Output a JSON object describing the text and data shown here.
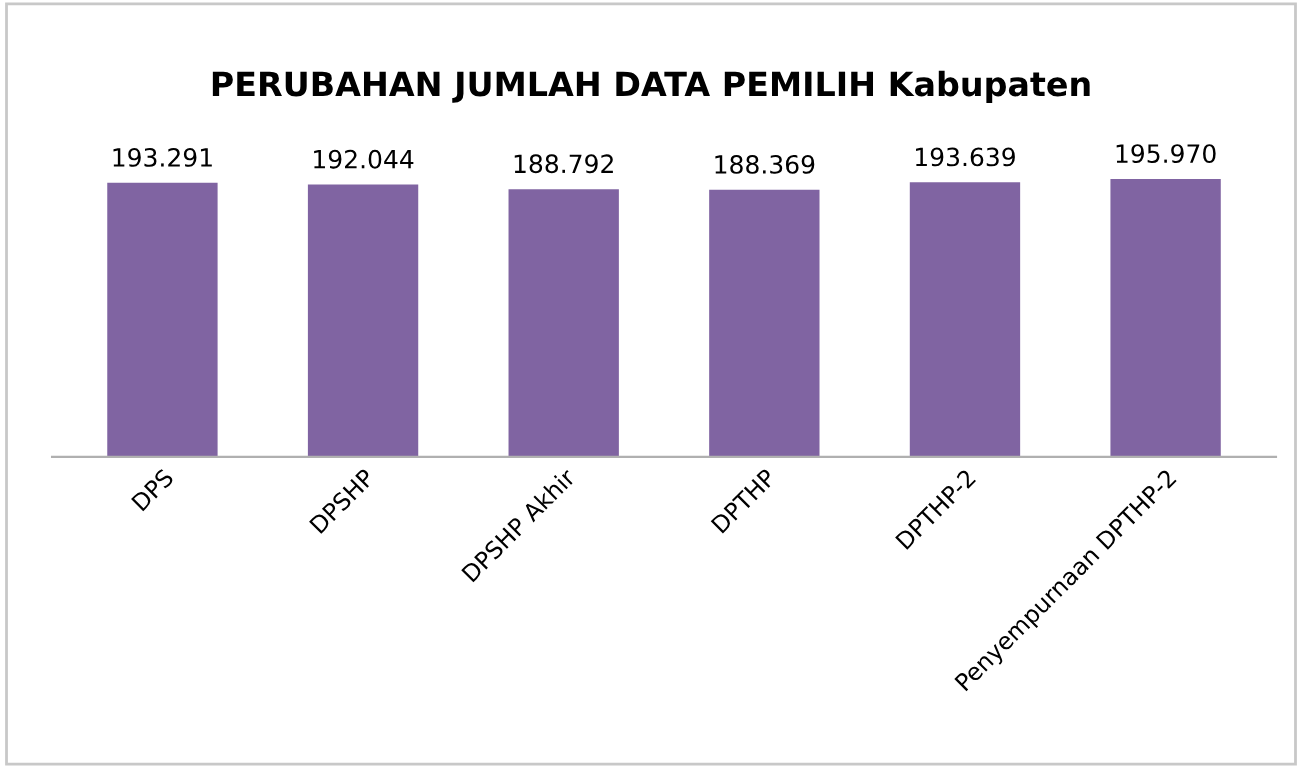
{
  "chart_data": {
    "type": "bar",
    "title": "PERUBAHAN JUMLAH DATA PEMILIH Kabupaten",
    "categories": [
      "DPS",
      "DPSHP",
      "DPSHP Akhir",
      "DPTHP",
      "DPTHP-2",
      "Penyempurnaan DPTHP-2"
    ],
    "values": [
      193291,
      192044,
      188792,
      188369,
      193639,
      195970
    ],
    "value_labels": [
      "193.291",
      "192.044",
      "188.792",
      "188.369",
      "193.639",
      "195.970"
    ],
    "color": "#8064a2",
    "tick_labels": "x",
    "grid": false,
    "legend": false
  }
}
